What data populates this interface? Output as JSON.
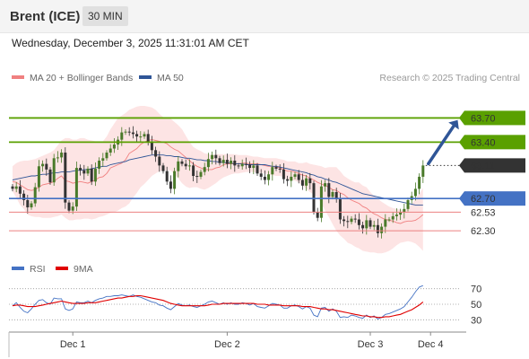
{
  "header": {
    "instrument": "Brent (ICE)",
    "interval": "30 MIN",
    "datetime": "Wednesday, December 3, 2025 11:31:01 AM CET"
  },
  "legend": {
    "ma20": "MA 20 + Bollinger Bands",
    "ma50": "MA 50",
    "credit": "Research © 2025 Trading Central"
  },
  "colors": {
    "ma20": "#f08080",
    "band_fill": "#fde4e4",
    "ma50": "#2f5597",
    "candle_up": "#4a7a2a",
    "candle_down": "#333333",
    "resistance": "#5aa000",
    "pivot": "#4472c4",
    "support": "#ec8080",
    "last": "#333333",
    "rsi": "#4472c4",
    "rsi_ma": "#e00000"
  },
  "chart_data": [
    {
      "type": "candlestick",
      "title": "Brent (ICE)",
      "ylim": [
        62.0,
        64.05
      ],
      "x_labels": [
        "Dec 1",
        "Dec 2",
        "Dec 3",
        "Dec 4"
      ],
      "levels": [
        {
          "value": 63.7,
          "label": "63.70",
          "kind": "resistance"
        },
        {
          "value": 63.4,
          "label": "63.40",
          "kind": "resistance"
        },
        {
          "value": 63.11,
          "label": "63.11",
          "kind": "last"
        },
        {
          "value": 62.7,
          "label": "62.70",
          "kind": "pivot"
        },
        {
          "value": 62.53,
          "label": "62.53",
          "kind": "support"
        },
        {
          "value": 62.3,
          "label": "62.30",
          "kind": "support"
        }
      ],
      "close": [
        62.82,
        62.85,
        62.76,
        62.68,
        62.59,
        62.64,
        62.84,
        63.1,
        63.13,
        63.06,
        62.9,
        63.2,
        63.21,
        63.27,
        62.65,
        62.55,
        62.6,
        63.08,
        63.05,
        63.01,
        63.07,
        62.91,
        63.07,
        63.17,
        63.2,
        63.27,
        63.32,
        63.37,
        63.43,
        63.52,
        63.53,
        63.52,
        63.5,
        63.47,
        63.47,
        63.5,
        63.4,
        63.3,
        63.22,
        63.11,
        63.04,
        62.91,
        62.82,
        63.04,
        63.16,
        63.13,
        63.1,
        63.11,
        62.98,
        62.97,
        63.03,
        63.09,
        63.19,
        63.24,
        63.2,
        63.14,
        63.18,
        63.13,
        63.17,
        63.11,
        63.1,
        63.13,
        63.12,
        63.08,
        63.11,
        63.01,
        62.97,
        62.93,
        63.0,
        63.09,
        63.07,
        63.06,
        62.94,
        62.92,
        62.97,
        63.0,
        62.93,
        62.86,
        62.95,
        62.89,
        62.53,
        62.46,
        62.85,
        62.89,
        62.72,
        62.78,
        62.69,
        62.44,
        62.42,
        62.41,
        62.45,
        62.44,
        62.37,
        62.33,
        62.43,
        62.35,
        62.37,
        62.27,
        62.35,
        62.44,
        62.44,
        62.48,
        62.5,
        62.53,
        62.57,
        62.68,
        62.73,
        62.82,
        62.97,
        63.11
      ],
      "ma20": [
        62.91,
        62.9,
        62.87,
        62.84,
        62.81,
        62.8,
        62.81,
        62.84,
        62.87,
        62.88,
        62.89,
        62.91,
        62.95,
        62.98,
        62.92,
        62.91,
        62.89,
        62.9,
        62.91,
        62.9,
        62.89,
        62.91,
        62.93,
        62.96,
        62.97,
        63.01,
        63.08,
        63.1,
        63.12,
        63.14,
        63.18,
        63.26,
        63.29,
        63.32,
        63.37,
        63.4,
        63.42,
        63.43,
        63.42,
        63.41,
        63.4,
        63.38,
        63.34,
        63.31,
        63.29,
        63.25,
        63.21,
        63.17,
        63.13,
        63.1,
        63.08,
        63.06,
        63.06,
        63.06,
        63.08,
        63.09,
        63.12,
        63.13,
        63.13,
        63.13,
        63.13,
        63.14,
        63.14,
        63.13,
        63.13,
        63.13,
        63.12,
        63.11,
        63.1,
        63.1,
        63.09,
        63.08,
        63.06,
        63.04,
        63.04,
        63.03,
        63.01,
        62.99,
        62.98,
        62.95,
        62.93,
        62.9,
        62.88,
        62.86,
        62.84,
        62.81,
        62.8,
        62.77,
        62.75,
        62.71,
        62.68,
        62.66,
        62.64,
        62.6,
        62.58,
        62.54,
        62.51,
        62.49,
        62.46,
        62.44,
        62.43,
        62.42,
        62.4,
        62.39,
        62.41,
        62.42,
        62.42,
        62.43,
        62.46,
        62.5
      ],
      "bb_upper": [
        63.1,
        63.14,
        63.16,
        63.17,
        63.17,
        63.18,
        63.19,
        63.21,
        63.23,
        63.25,
        63.27,
        63.3,
        63.36,
        63.42,
        63.45,
        63.45,
        63.43,
        63.43,
        63.45,
        63.45,
        63.43,
        63.42,
        63.41,
        63.41,
        63.41,
        63.47,
        63.56,
        63.63,
        63.7,
        63.73,
        63.76,
        63.8,
        63.82,
        63.84,
        63.85,
        63.85,
        63.84,
        63.83,
        63.8,
        63.75,
        63.71,
        63.7,
        63.69,
        63.65,
        63.61,
        63.56,
        63.48,
        63.4,
        63.34,
        63.31,
        63.29,
        63.26,
        63.25,
        63.24,
        63.25,
        63.25,
        63.25,
        63.25,
        63.25,
        63.25,
        63.24,
        63.24,
        63.24,
        63.23,
        63.22,
        63.22,
        63.21,
        63.2,
        63.2,
        63.2,
        63.2,
        63.19,
        63.18,
        63.16,
        63.16,
        63.16,
        63.14,
        63.14,
        63.15,
        63.13,
        63.12,
        63.11,
        63.1,
        63.08,
        63.09,
        63.09,
        63.09,
        63.04,
        62.98,
        62.95,
        62.92,
        62.9,
        62.9,
        62.86,
        62.84,
        62.78,
        62.73,
        62.7,
        62.66,
        62.63,
        62.6,
        62.58,
        62.57,
        62.56,
        62.55,
        62.58,
        62.63,
        62.7,
        62.76,
        62.83
      ],
      "bb_lower": [
        62.79,
        62.71,
        62.62,
        62.57,
        62.5,
        62.48,
        62.47,
        62.47,
        62.46,
        62.46,
        62.46,
        62.47,
        62.48,
        62.5,
        62.46,
        62.43,
        62.43,
        62.44,
        62.44,
        62.45,
        62.45,
        62.44,
        62.45,
        62.47,
        62.48,
        62.5,
        62.52,
        62.53,
        62.55,
        62.58,
        62.6,
        62.64,
        62.71,
        62.77,
        62.84,
        62.88,
        62.93,
        62.98,
        63.01,
        63.04,
        63.05,
        63.05,
        63.05,
        63.0,
        62.95,
        62.89,
        62.85,
        62.83,
        62.84,
        62.84,
        62.82,
        62.81,
        62.83,
        62.86,
        62.89,
        62.93,
        62.96,
        62.98,
        63.0,
        63.01,
        63.01,
        63.02,
        63.03,
        63.03,
        63.03,
        63.02,
        63.02,
        63.01,
        63.0,
        62.99,
        62.98,
        62.98,
        62.96,
        62.94,
        62.93,
        62.92,
        62.9,
        62.86,
        62.82,
        62.78,
        62.75,
        62.71,
        62.64,
        62.55,
        62.47,
        62.38,
        62.3,
        62.24,
        62.2,
        62.15,
        62.13,
        62.1,
        62.08,
        62.05,
        62.04,
        62.03,
        62.03,
        62.02,
        62.02,
        62.03,
        62.05,
        62.08,
        62.12,
        62.15,
        62.16,
        62.17,
        62.16,
        62.14,
        62.1,
        62.05
      ],
      "ma50": [
        62.93,
        62.94,
        62.95,
        62.96,
        62.97,
        62.98,
        62.98,
        62.99,
        63.0,
        63.0,
        63.01,
        63.02,
        63.02,
        63.03,
        63.03,
        63.03,
        63.04,
        63.05,
        63.05,
        63.06,
        63.06,
        63.07,
        63.08,
        63.09,
        63.1,
        63.1,
        63.12,
        63.13,
        63.14,
        63.15,
        63.16,
        63.18,
        63.19,
        63.2,
        63.21,
        63.22,
        63.23,
        63.24,
        63.24,
        63.24,
        63.24,
        63.23,
        63.23,
        63.22,
        63.22,
        63.21,
        63.2,
        63.2,
        63.19,
        63.18,
        63.18,
        63.17,
        63.17,
        63.16,
        63.16,
        63.15,
        63.15,
        63.14,
        63.14,
        63.13,
        63.13,
        63.13,
        63.12,
        63.12,
        63.12,
        63.12,
        63.12,
        63.12,
        63.11,
        63.1,
        63.1,
        63.09,
        63.08,
        63.07,
        63.06,
        63.05,
        63.04,
        63.03,
        63.02,
        63.0,
        62.99,
        62.97,
        62.96,
        62.94,
        62.93,
        62.91,
        62.9,
        62.88,
        62.86,
        62.84,
        62.82,
        62.8,
        62.78,
        62.76,
        62.75,
        62.74,
        62.73,
        62.72,
        62.71,
        62.7,
        62.69,
        62.68,
        62.67,
        62.66,
        62.65,
        62.64,
        62.63,
        62.62,
        62.62,
        62.62
      ]
    },
    {
      "type": "line",
      "title": "RSI",
      "series_names": [
        "RSI",
        "9MA"
      ],
      "ylim": [
        20,
        80
      ],
      "y_ticks": [
        70,
        50,
        30
      ],
      "rsi": [
        48,
        52,
        46,
        41,
        39,
        44,
        50,
        55,
        56,
        52,
        50,
        58,
        57,
        57,
        44,
        42,
        44,
        53,
        52,
        52,
        54,
        52,
        55,
        57,
        58,
        60,
        60,
        61,
        61,
        62,
        61,
        60,
        62,
        60,
        59,
        57,
        55,
        53,
        52,
        49,
        48,
        45,
        43,
        47,
        51,
        49,
        48,
        49,
        47,
        46,
        48,
        50,
        53,
        54,
        52,
        50,
        52,
        50,
        52,
        50,
        50,
        52,
        51,
        49,
        51,
        47,
        46,
        45,
        48,
        51,
        50,
        49,
        45,
        45,
        48,
        49,
        47,
        44,
        47,
        45,
        36,
        34,
        45,
        46,
        41,
        44,
        41,
        33,
        34,
        33,
        36,
        35,
        33,
        32,
        36,
        33,
        35,
        31,
        33,
        37,
        38,
        40,
        42,
        44,
        47,
        53,
        59,
        66,
        72,
        74
      ],
      "rsi_ma": [
        48,
        49,
        49,
        48,
        47,
        47,
        47,
        48,
        49,
        50,
        51,
        52,
        53,
        54,
        53,
        52,
        51,
        51,
        51,
        51,
        52,
        52,
        52,
        53,
        54,
        55,
        56,
        57,
        58,
        58,
        59,
        60,
        60,
        61,
        61,
        60,
        59,
        58,
        57,
        56,
        55,
        53,
        51,
        50,
        49,
        48,
        48,
        48,
        48,
        48,
        48,
        48,
        49,
        50,
        50,
        50,
        51,
        51,
        51,
        51,
        51,
        51,
        51,
        51,
        51,
        50,
        50,
        50,
        49,
        49,
        49,
        49,
        48,
        48,
        48,
        48,
        48,
        47,
        47,
        47,
        46,
        45,
        44,
        44,
        43,
        43,
        42,
        41,
        40,
        39,
        38,
        37,
        36,
        35,
        35,
        34,
        34,
        33,
        33,
        34,
        34,
        35,
        36,
        37,
        39,
        41,
        43,
        46,
        49,
        53
      ]
    }
  ]
}
